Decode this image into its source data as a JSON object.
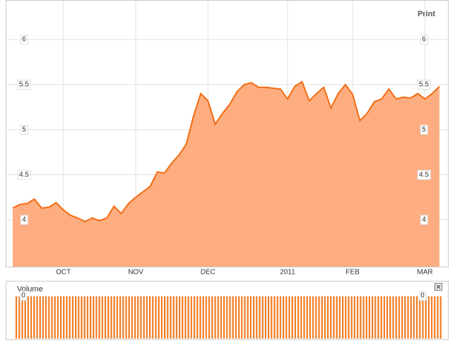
{
  "chart_data": [
    {
      "type": "area",
      "print_link": "Print",
      "categories": [
        null,
        null,
        null,
        null,
        null,
        null,
        null,
        "OCT",
        null,
        null,
        null,
        null,
        null,
        null,
        null,
        null,
        null,
        "NOV",
        null,
        null,
        null,
        null,
        null,
        null,
        null,
        null,
        null,
        "DEC",
        null,
        null,
        null,
        null,
        null,
        null,
        null,
        null,
        null,
        null,
        "2011",
        null,
        null,
        null,
        null,
        null,
        null,
        null,
        null,
        "FEB",
        null,
        null,
        null,
        null,
        null,
        null,
        null,
        null,
        null,
        "MAR",
        null,
        null
      ],
      "values": [
        4.13,
        4.17,
        4.18,
        4.23,
        4.13,
        4.14,
        4.19,
        4.11,
        4.05,
        4.02,
        3.98,
        4.02,
        3.99,
        4.02,
        4.15,
        4.07,
        4.18,
        4.25,
        4.31,
        4.37,
        4.53,
        4.52,
        4.63,
        4.72,
        4.84,
        5.15,
        5.4,
        5.32,
        5.06,
        5.18,
        5.28,
        5.42,
        5.5,
        5.52,
        5.47,
        5.47,
        5.46,
        5.45,
        5.34,
        5.48,
        5.53,
        5.32,
        5.4,
        5.47,
        5.24,
        5.4,
        5.5,
        5.39,
        5.1,
        5.18,
        5.31,
        5.34,
        5.45,
        5.34,
        5.36,
        5.35,
        5.4,
        5.34,
        5.4,
        5.48
      ],
      "color": "#f26b12",
      "fill": "#fdad80",
      "ylim": [
        3.48,
        6.43
      ],
      "yticks": [
        4,
        4.5,
        5,
        5.5,
        6
      ],
      "grid": true
    },
    {
      "type": "volume",
      "title": "Volume",
      "yticks": [
        0
      ]
    }
  ]
}
